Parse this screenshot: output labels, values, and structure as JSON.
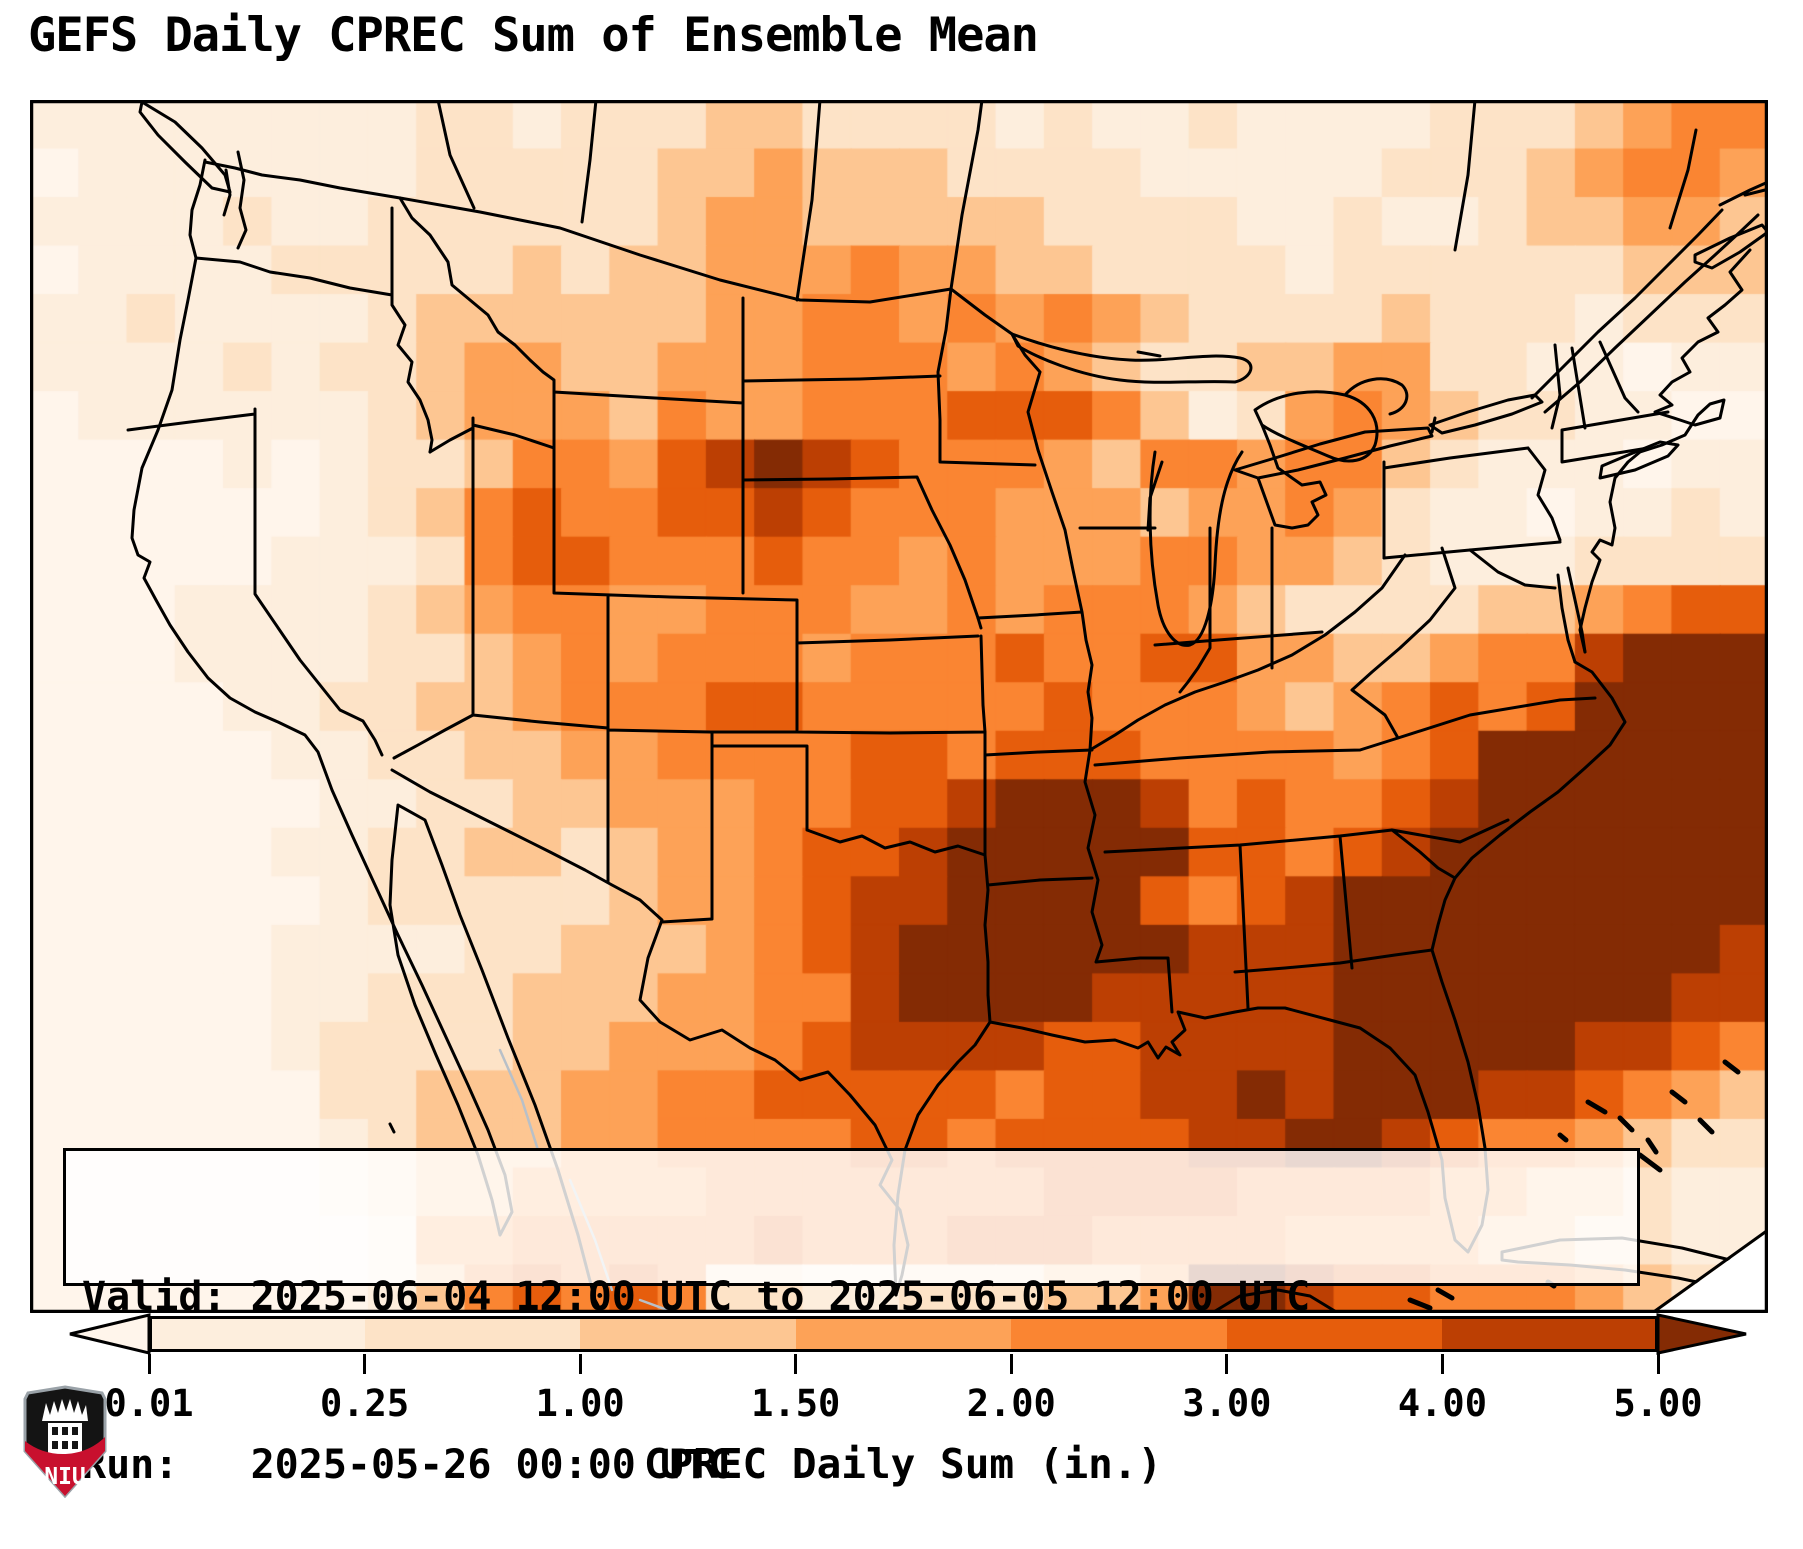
{
  "title": "GEFS Daily CPREC Sum of Ensemble Mean",
  "info_box": {
    "line1": "Valid: 2025-06-04 12:00 UTC to 2025-06-05 12:00 UTC",
    "line2": "Run:   2025-05-26 00:00 UTC"
  },
  "colorbar": {
    "tick_labels": [
      "0.01",
      "0.25",
      "1.00",
      "1.50",
      "2.00",
      "3.00",
      "4.00",
      "5.00"
    ],
    "axis_label": "CPREC Daily Sum (in.)",
    "extend": "both"
  },
  "logo": {
    "text": "NIU",
    "shield_color": "#141414",
    "band_color": "#c8102e"
  },
  "chart_data": {
    "type": "heatmap",
    "title": "GEFS Daily CPREC Sum of Ensemble Mean",
    "valid": "2025-06-04 12:00 UTC to 2025-06-05 12:00 UTC",
    "run": "2025-05-26 00:00 UTC",
    "variable": "CPREC Daily Sum",
    "units": "in.",
    "colorbar_bounds": [
      0.01,
      0.25,
      1.0,
      1.5,
      2.0,
      3.0,
      4.0,
      5.0
    ],
    "extend": "both",
    "level_colors": [
      "#fff5eb",
      "#fdeedd",
      "#fde3c7",
      "#fdc692",
      "#fda257",
      "#fa8532",
      "#e65d0c",
      "#bc3f03",
      "#842b04"
    ],
    "level_meaning": "digit = precipitation bin: 0 <0.01in, 1 0.01-0.25, 2 0.25-1.00, 3 1.00-1.50, 4 1.50-2.00, 5 2.00-3.00, 6 3.00-4.00, 7 4.00-5.00, 8 >5.00",
    "grid": {
      "cols": 36,
      "rows": 25,
      "levels": [
        "111111112212223322221211211112223455",
        "011111112222233433322221111122234554",
        "111121122222234433333222211211233443",
        "011112222232334445443322221222222333",
        "112111123333334455454543222232221222",
        "111121223443344455545432233442211011",
        "011111123444354455566653124543221100",
        "000010122355467876555435545532111011",
        "000000123565566765554443445421101121",
        "000001112566555655454445544321112222",
        "000111123455445554454555432222334566",
        "000111122345455545556556644334557888",
        "000011223345556655555655543456568888",
        "000001122334455556656665555456888888",
        "000000112233444556678887565567888888",
        "000001122332344566788888665678888888",
        "000000122222344567788886567888888888",
        "000001111223334567888888777888888887",
        "000001122233344557888877777888888877",
        "000001222233444567777667777888887765",
        "000000223334455666665667787888776543",
        "000000123334455556656666778876554322",
        "000000123344445555555666655554433211",
        "000000014455555655566655554444332211",
        "000000013565652211222334887665554322"
      ]
    }
  }
}
